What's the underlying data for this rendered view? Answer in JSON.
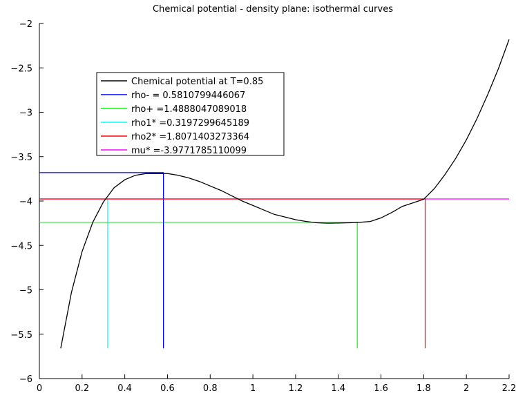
{
  "chart_data": {
    "type": "line",
    "title": "Chemical potential - density plane: isothermal curves",
    "xlabel": "",
    "ylabel": "",
    "xlim": [
      0,
      2.2
    ],
    "ylim": [
      -6,
      -2
    ],
    "x_ticks": [
      0,
      0.2,
      0.4,
      0.6,
      0.8,
      1,
      1.2,
      1.4,
      1.6,
      1.8,
      2,
      2.2
    ],
    "x_tick_labels": [
      "0",
      "0.2",
      "0.4",
      "0.6",
      "0.8",
      "1",
      "1.2",
      "1.4",
      "1.6",
      "1.8",
      "2",
      "2.2"
    ],
    "y_ticks": [
      -6,
      -5.5,
      -5,
      -4.5,
      -4,
      -3.5,
      -3,
      -2.5,
      -2
    ],
    "y_tick_labels": [
      "−6",
      "−5.5",
      "−5",
      "−4.5",
      "−4",
      "−3.5",
      "−3",
      "−2.5",
      "−2"
    ],
    "grid": false,
    "legend_position": "upper-left",
    "series": [
      {
        "name": "Chemical potential at T=0.85",
        "color": "#000000",
        "kind": "curve",
        "x": [
          0.1,
          0.15,
          0.2,
          0.25,
          0.3,
          0.35,
          0.4,
          0.45,
          0.5,
          0.55,
          0.6,
          0.65,
          0.7,
          0.75,
          0.8,
          0.85,
          0.9,
          0.95,
          1.0,
          1.05,
          1.1,
          1.15,
          1.2,
          1.25,
          1.3,
          1.35,
          1.4,
          1.45,
          1.5,
          1.55,
          1.6,
          1.65,
          1.7,
          1.75,
          1.8,
          1.85,
          1.9,
          1.95,
          2.0,
          2.05,
          2.1,
          2.15,
          2.2
        ],
        "y": [
          -5.66,
          -5.03,
          -4.57,
          -4.24,
          -4.01,
          -3.85,
          -3.76,
          -3.71,
          -3.69,
          -3.69,
          -3.69,
          -3.71,
          -3.74,
          -3.78,
          -3.83,
          -3.88,
          -3.94,
          -4.0,
          -4.05,
          -4.1,
          -4.15,
          -4.18,
          -4.21,
          -4.23,
          -4.245,
          -4.25,
          -4.248,
          -4.245,
          -4.24,
          -4.23,
          -4.19,
          -4.13,
          -4.06,
          -4.02,
          -3.98,
          -3.86,
          -3.7,
          -3.52,
          -3.31,
          -3.07,
          -2.8,
          -2.51,
          -2.18
        ]
      },
      {
        "name": "rho- = 0.5810799446067",
        "color": "#0000ff",
        "kind": "marker",
        "x": [
          0,
          0.581,
          0.581
        ],
        "y": [
          -3.68,
          -3.68,
          -5.66
        ]
      },
      {
        "name": "rho+ =1.4888047089018",
        "color": "#00ff00",
        "kind": "marker",
        "x": [
          0,
          1.489,
          1.489
        ],
        "y": [
          -4.24,
          -4.24,
          -5.66
        ]
      },
      {
        "name": "rho1* =0.3197299645189",
        "color": "#00ffff",
        "kind": "marker",
        "x": [
          0.32,
          0.32
        ],
        "y": [
          -3.98,
          -5.66
        ]
      },
      {
        "name": "rho2* =1.8071403273364",
        "color": "#ff0000",
        "kind": "marker",
        "x": [
          0,
          1.807,
          1.807
        ],
        "y": [
          -3.977,
          -3.977,
          -5.66
        ]
      },
      {
        "name": "mu* =-3.9771785110099",
        "color": "#ff00ff",
        "kind": "marker",
        "x": [
          0,
          2.2
        ],
        "y": [
          -3.977,
          -3.977
        ]
      }
    ]
  }
}
